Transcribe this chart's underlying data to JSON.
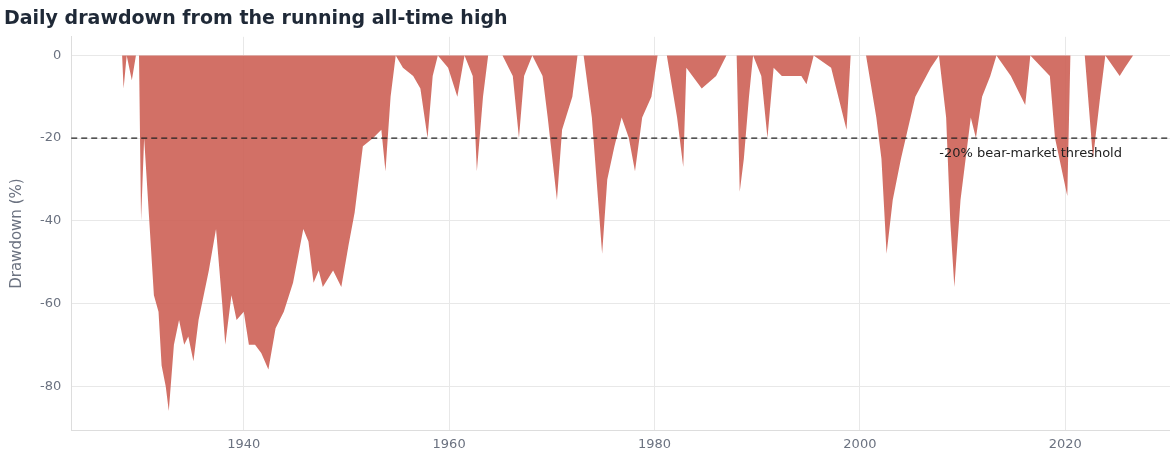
{
  "chart_data": {
    "type": "area",
    "title": "Daily drawdown from the running all-time high",
    "ylabel": "Drawdown (%)",
    "x": [
      1928.15,
      1928.3,
      1928.6,
      1929.1,
      1929.5,
      1929.8,
      1930.0,
      1930.3,
      1930.8,
      1931.25,
      1931.7,
      1932.0,
      1932.4,
      1932.7,
      1933.2,
      1933.7,
      1934.2,
      1934.6,
      1935.1,
      1935.6,
      1936.1,
      1936.6,
      1937.3,
      1937.9,
      1938.2,
      1938.8,
      1939.3,
      1940.0,
      1940.5,
      1941.1,
      1941.7,
      1942.4,
      1943.1,
      1943.9,
      1944.8,
      1945.8,
      1946.3,
      1946.8,
      1947.3,
      1947.7,
      1948.7,
      1949.5,
      1950.2,
      1950.8,
      1951.6,
      1952.6,
      1953.4,
      1953.8,
      1954.3,
      1954.8,
      1955.5,
      1956.5,
      1957.2,
      1957.9,
      1958.4,
      1958.9,
      1959.9,
      1960.8,
      1961.5,
      1962.3,
      1962.7,
      1963.3,
      1963.8,
      1965.2,
      1966.2,
      1966.8,
      1967.3,
      1968.1,
      1969.1,
      1969.6,
      1970.5,
      1971.0,
      1972.0,
      1972.5,
      1973.1,
      1973.9,
      1974.9,
      1975.4,
      1976.1,
      1976.8,
      1977.5,
      1978.1,
      1978.8,
      1979.7,
      1980.3,
      1981.2,
      1982.2,
      1982.8,
      1983.1,
      1984.6,
      1986.0,
      1987.0,
      1988.0,
      1988.3,
      1988.7,
      1989.2,
      1989.6,
      1990.4,
      1991.0,
      1991.6,
      1992.4,
      1994.3,
      1994.8,
      1995.5,
      1997.2,
      1998.7,
      1999.1,
      2000.6,
      2001.6,
      2002.1,
      2002.6,
      2003.2,
      2004.0,
      2005.4,
      2006.9,
      2007.7,
      2008.4,
      2008.8,
      2009.2,
      2009.8,
      2010.8,
      2011.3,
      2011.9,
      2012.7,
      2013.3,
      2014.7,
      2016.1,
      2016.6,
      2018.5,
      2019.0,
      2020.2,
      2020.5,
      2021.9,
      2022.7,
      2023.4,
      2023.9,
      2025.3,
      2025.8,
      2026.6
    ],
    "series": [
      {
        "color": "#cd6155",
        "values": [
          0,
          -8,
          0,
          -6,
          0,
          0,
          -40,
          -20,
          -40,
          -58,
          -62,
          -75,
          -80,
          -86,
          -70,
          -64,
          -70,
          -68,
          -74,
          -64,
          -58,
          -52,
          -42,
          -60,
          -70,
          -58,
          -64,
          -62,
          -70,
          -70,
          -72,
          -76,
          -66,
          -62,
          -55,
          -42,
          -45,
          -55,
          -52,
          -56,
          -52,
          -56,
          -46,
          -38,
          -22,
          -20,
          -18,
          -28,
          -10,
          0,
          -3,
          -5,
          -8,
          -20,
          -5,
          0,
          -3,
          -10,
          0,
          -5,
          -28,
          -10,
          0,
          0,
          -5,
          -20,
          -5,
          0,
          -5,
          -15,
          -35,
          -18,
          -10,
          0,
          0,
          -15,
          -48,
          -30,
          -22,
          -15,
          -20,
          -28,
          -15,
          -10,
          0,
          0,
          -15,
          -27,
          -3,
          -8,
          -5,
          0,
          0,
          -33,
          -25,
          -10,
          0,
          -5,
          -20,
          -3,
          -5,
          -5,
          -7,
          0,
          -3,
          -18,
          0,
          0,
          -15,
          -25,
          -48,
          -35,
          -25,
          -10,
          -3,
          0,
          -15,
          -40,
          -56,
          -35,
          -15,
          -20,
          -10,
          -5,
          0,
          -5,
          -12,
          0,
          -5,
          -20,
          -34,
          0,
          0,
          -25,
          -10,
          0,
          -5,
          -3,
          0
        ]
      }
    ],
    "xlim": [
      1923.2,
      2030.2
    ],
    "xticks": [
      1940,
      1960,
      1980,
      2000,
      2020
    ],
    "ylim": [
      -90.7,
      4.5
    ],
    "yticks": [
      -80,
      -60,
      -40,
      -20,
      0
    ],
    "grid": true,
    "ref_lines": [
      {
        "axis": "y",
        "value": -20,
        "label": "-20% bear-market threshold",
        "color": "#222222",
        "line_style": "dashed"
      }
    ]
  }
}
